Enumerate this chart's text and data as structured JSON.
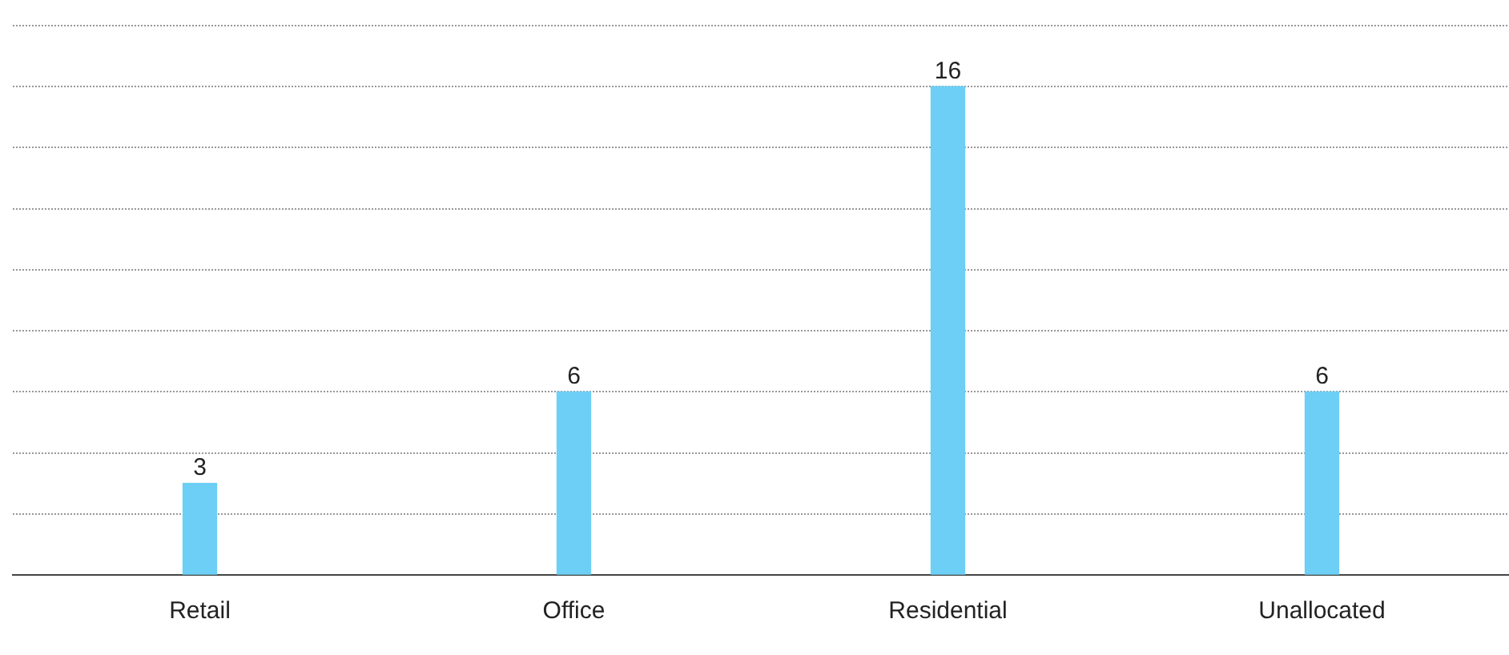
{
  "chart_data": {
    "type": "bar",
    "categories": [
      "Retail",
      "Office",
      "Residential",
      "Unallocated"
    ],
    "values": [
      3,
      6,
      16,
      6
    ],
    "color": "#6dcff6",
    "ylim": [
      0,
      18
    ],
    "yticks": [
      {
        "value": 0,
        "label": null
      },
      {
        "value": 2,
        "label": null
      },
      {
        "value": 4,
        "label": null
      },
      {
        "value": 6,
        "label": null
      },
      {
        "value": 8,
        "label": null
      },
      {
        "value": 10,
        "label": null
      },
      {
        "value": 12,
        "label": null
      },
      {
        "value": 14,
        "label": null
      },
      {
        "value": 16,
        "label": null
      }
    ],
    "grid": "y",
    "tick_labels": "x",
    "data_labels": true,
    "legend": false
  }
}
